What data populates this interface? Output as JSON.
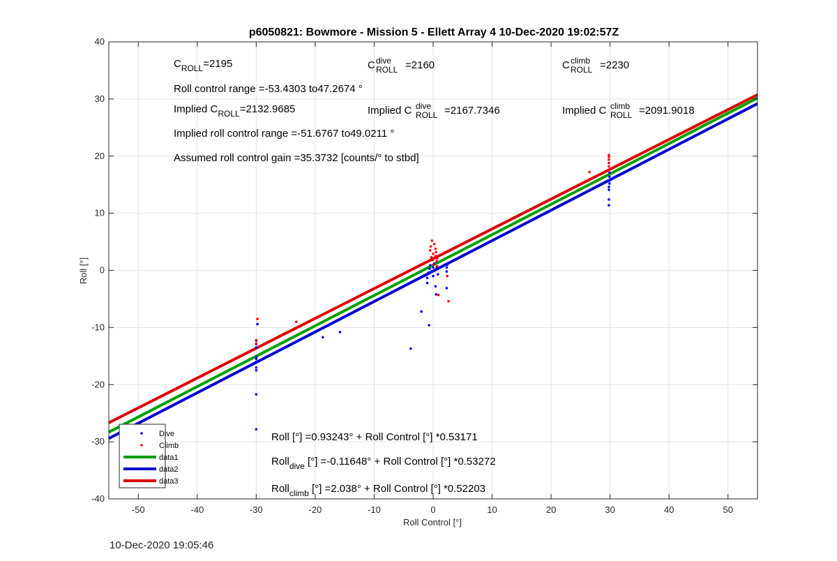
{
  "chart_data": {
    "type": "scatter",
    "title": "p6050821: Bowmore - Mission 5 - Ellett Array 4 10-Dec-2020 19:02:57Z",
    "xlabel": "Roll Control [°]",
    "ylabel": "Roll [°]",
    "xlim": [
      -55,
      55
    ],
    "ylim": [
      -40,
      40
    ],
    "xticks": [
      -50,
      -40,
      -30,
      -20,
      -10,
      0,
      10,
      20,
      30,
      40,
      50
    ],
    "yticks": [
      -40,
      -30,
      -20,
      -10,
      0,
      10,
      20,
      30,
      40
    ],
    "grid": true,
    "legend_position": "bottom-left",
    "series": [
      {
        "name": "Dive",
        "kind": "points",
        "color": "#0000ff",
        "points": [
          [
            -30,
            -27.8
          ],
          [
            -30,
            -21.7
          ],
          [
            -30,
            -17.5
          ],
          [
            -30,
            -17.0
          ],
          [
            -30,
            -16.0
          ],
          [
            -30,
            -15.5
          ],
          [
            -30,
            -15.2
          ],
          [
            -30,
            -13.5
          ],
          [
            -30,
            -12.9
          ],
          [
            -30,
            -12.3
          ],
          [
            -29.8,
            -9.4
          ],
          [
            -18.7,
            -11.7
          ],
          [
            -15.8,
            -10.8
          ],
          [
            -3.8,
            -13.7
          ],
          [
            -2.0,
            -7.2
          ],
          [
            -0.7,
            -9.6
          ],
          [
            -1.0,
            -2.2
          ],
          [
            -1.0,
            -1.3
          ],
          [
            -0.8,
            -0.4
          ],
          [
            -0.6,
            0.3
          ],
          [
            -0.5,
            0.9
          ],
          [
            -0.3,
            -0.2
          ],
          [
            0,
            -1.0
          ],
          [
            0,
            0.5
          ],
          [
            0.2,
            1.2
          ],
          [
            0.4,
            -2.8
          ],
          [
            0.5,
            -4.2
          ],
          [
            0.6,
            0.6
          ],
          [
            0.8,
            -0.7
          ],
          [
            2.3,
            -0.2
          ],
          [
            2.3,
            0.5
          ],
          [
            2.4,
            1.0
          ],
          [
            2.3,
            -3.1
          ],
          [
            29.8,
            11.4
          ],
          [
            29.8,
            12.4
          ],
          [
            29.8,
            14.1
          ],
          [
            29.8,
            14.6
          ],
          [
            29.9,
            15.2
          ],
          [
            29.9,
            15.7
          ],
          [
            29.9,
            16.4
          ],
          [
            29.9,
            17.1
          ]
        ]
      },
      {
        "name": "Climb",
        "kind": "points",
        "color": "#ff0000",
        "points": [
          [
            -30,
            -12.8
          ],
          [
            -30,
            -12.2
          ],
          [
            -29.8,
            -8.5
          ],
          [
            -23.2,
            -9.0
          ],
          [
            -0.5,
            3.5
          ],
          [
            -0.4,
            4.2
          ],
          [
            -0.2,
            5.2
          ],
          [
            -0.3,
            2.3
          ],
          [
            -0.1,
            1.8
          ],
          [
            0,
            2.9
          ],
          [
            0.1,
            1.0
          ],
          [
            0.2,
            4.6
          ],
          [
            0.4,
            3.8
          ],
          [
            0.4,
            2.5
          ],
          [
            0.5,
            3.2
          ],
          [
            0.6,
            1.6
          ],
          [
            0.7,
            2.1
          ],
          [
            0.7,
            0.7
          ],
          [
            0.9,
            -4.3
          ],
          [
            2.4,
            -1.0
          ],
          [
            2.6,
            -5.4
          ],
          [
            26.5,
            17.2
          ],
          [
            29.8,
            17.6
          ],
          [
            29.8,
            18.2
          ],
          [
            29.8,
            18.8
          ],
          [
            29.8,
            19.4
          ],
          [
            29.8,
            19.9
          ],
          [
            29.8,
            20.2
          ]
        ]
      },
      {
        "name": "data1",
        "kind": "line",
        "color": "#00a000",
        "intercept": 0.93243,
        "slope": 0.53171
      },
      {
        "name": "data2",
        "kind": "line",
        "color": "#0000cc",
        "intercept": -0.11648,
        "slope": 0.53272
      },
      {
        "name": "data3",
        "kind": "line",
        "color": "#dd0000",
        "intercept": 2.038,
        "slope": 0.52203
      }
    ],
    "annotations": {
      "c_roll": {
        "main": "C",
        "sub": "ROLL",
        "value": "=2195"
      },
      "c_roll_dive": {
        "main": "C",
        "sup": "dive",
        "sub": "ROLL",
        "value": "=2160"
      },
      "c_roll_climb": {
        "main": "C",
        "sup": "climb",
        "sub": "ROLL",
        "value": "=2230"
      },
      "roll_control_range": "Roll control range =-53.4303 to47.2674 °",
      "implied_c_roll": {
        "prefix": "Implied C",
        "sub": "ROLL",
        "value": "=2132.9685"
      },
      "implied_c_roll_dive": {
        "prefix": "Implied C",
        "sup": "dive",
        "sub": "ROLL",
        "value": "=2167.7346"
      },
      "implied_c_roll_climb": {
        "prefix": "Implied C",
        "sup": "climb",
        "sub": "ROLL",
        "value": "=2091.9018"
      },
      "implied_range": "Implied roll control range =-51.6767 to49.0211 °",
      "gain": "Assumed roll control gain =35.3732 [counts/° to stbd]",
      "fit_all": {
        "main": "Roll",
        "sub": "",
        "rest": " [°] =0.93243° + Roll Control [°] *0.53171"
      },
      "fit_dive": {
        "main": "Roll",
        "sub": "dive",
        "rest": " [°] =-0.11648° + Roll Control [°] *0.53272"
      },
      "fit_climb": {
        "main": "Roll",
        "sub": "climb",
        "rest": " [°] =2.038° + Roll Control [°] *0.52203"
      }
    }
  },
  "footer": {
    "timestamp": "10-Dec-2020 19:05:46"
  }
}
